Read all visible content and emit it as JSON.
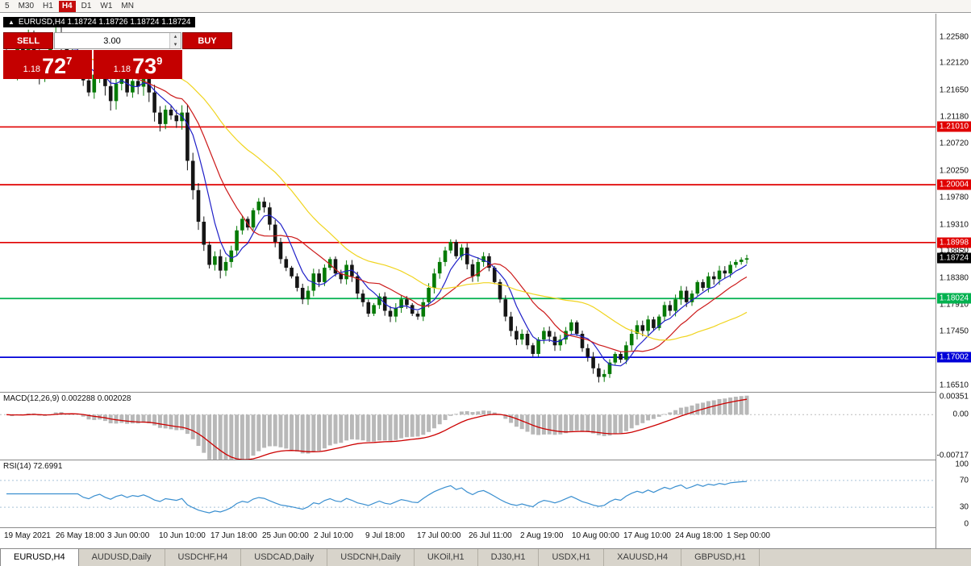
{
  "toolbar": {
    "timeframes": [
      {
        "label": "5",
        "active": false
      },
      {
        "label": "M30",
        "active": false
      },
      {
        "label": "H1",
        "active": false
      },
      {
        "label": "H4",
        "active": true
      },
      {
        "label": "D1",
        "active": false
      },
      {
        "label": "W1",
        "active": false
      },
      {
        "label": "MN",
        "active": false
      }
    ]
  },
  "chart_header": {
    "text": "EURUSD,H4 1.18724 1.18726 1.18724 1.18724"
  },
  "trade_panel": {
    "sell_label": "SELL",
    "buy_label": "BUY",
    "volume": "3.00",
    "sell_price": {
      "small": "1.18",
      "big": "72",
      "sup": "7"
    },
    "buy_price": {
      "small": "1.18",
      "big": "73",
      "sup": "9"
    }
  },
  "price_axis": {
    "labels": [
      "1.22580",
      "1.22120",
      "1.21650",
      "1.21180",
      "1.20720",
      "1.20250",
      "1.19780",
      "1.19310",
      "1.18850",
      "1.18380",
      "1.17910",
      "1.17450",
      "1.16980",
      "1.16510"
    ],
    "current": "1.18724",
    "current_bg": "#000000"
  },
  "indicators": {
    "macd": {
      "label": "MACD(12,26,9) 0.002288 0.002028",
      "axis": [
        "0.00351",
        "0.00",
        "-0.00717"
      ],
      "range": [
        0.00351,
        -0.00717
      ],
      "histogram_color": "#b8b8b8",
      "signal_color": "#cc0000"
    },
    "rsi": {
      "label": "RSI(14) 72.6991",
      "axis": [
        "100",
        "70",
        "30",
        "0"
      ],
      "guides": [
        70,
        30
      ],
      "line_color": "#3a8fd0"
    }
  },
  "time_axis": [
    "19 May 2021",
    "26 May 18:00",
    "3 Jun 00:00",
    "10 Jun 10:00",
    "17 Jun 18:00",
    "25 Jun 00:00",
    "2 Jul 10:00",
    "9 Jul 18:00",
    "17 Jul 00:00",
    "26 Jul 11:00",
    "2 Aug 19:00",
    "10 Aug 00:00",
    "17 Aug 10:00",
    "24 Aug 18:00",
    "1 Sep 00:00"
  ],
  "tabs": [
    {
      "label": "EURUSD,H4",
      "active": true
    },
    {
      "label": "AUDUSD,Daily",
      "active": false
    },
    {
      "label": "USDCHF,H4",
      "active": false
    },
    {
      "label": "USDCAD,Daily",
      "active": false
    },
    {
      "label": "USDCNH,Daily",
      "active": false
    },
    {
      "label": "UKOil,H1",
      "active": false
    },
    {
      "label": "DJ30,H1",
      "active": false
    },
    {
      "label": "USDX,H1",
      "active": false
    },
    {
      "label": "XAUUSD,H4",
      "active": false
    },
    {
      "label": "GBPUSD,H1",
      "active": false
    }
  ],
  "chart_data": {
    "type": "candlestick",
    "symbol": "EURUSD",
    "timeframe": "H4",
    "title": "EURUSD,H4",
    "ylim": [
      1.164,
      1.2298
    ],
    "current_price": 1.18724,
    "up_color": "#067a06",
    "down_color": "#151515",
    "closes": [
      1.2225,
      1.2196,
      1.2242,
      1.2218,
      1.2256,
      1.2231,
      1.2187,
      1.2214,
      1.2252,
      1.2264,
      1.2241,
      1.2203,
      1.2232,
      1.2216,
      1.2182,
      1.2161,
      1.2192,
      1.2211,
      1.2172,
      1.2146,
      1.2176,
      1.2192,
      1.2161,
      1.2181,
      1.2171,
      1.2186,
      1.2161,
      1.2126,
      1.2106,
      1.2131,
      1.2121,
      1.2111,
      1.2126,
      1.2042,
      1.1991,
      1.1936,
      1.1896,
      1.1861,
      1.1876,
      1.1851,
      1.1866,
      1.1886,
      1.1921,
      1.1941,
      1.1926,
      1.1956,
      1.1971,
      1.1961,
      1.1931,
      1.1901,
      1.1871,
      1.1856,
      1.1841,
      1.1821,
      1.1801,
      1.1816,
      1.1846,
      1.1831,
      1.1856,
      1.1871,
      1.1846,
      1.1836,
      1.1861,
      1.1841,
      1.1811,
      1.1796,
      1.1776,
      1.1791,
      1.1806,
      1.1781,
      1.1771,
      1.1786,
      1.1801,
      1.1791,
      1.1776,
      1.1771,
      1.1796,
      1.1821,
      1.1846,
      1.1866,
      1.1886,
      1.1901,
      1.1876,
      1.1891,
      1.1862,
      1.1841,
      1.1866,
      1.1876,
      1.1856,
      1.1831,
      1.1801,
      1.1771,
      1.1746,
      1.1731,
      1.1741,
      1.1721,
      1.1706,
      1.1731,
      1.1746,
      1.1736,
      1.1721,
      1.1731,
      1.1746,
      1.1761,
      1.1741,
      1.1716,
      1.1701,
      1.1681,
      1.1666,
      1.1671,
      1.1691,
      1.1706,
      1.1696,
      1.1721,
      1.1741,
      1.1756,
      1.1746,
      1.1766,
      1.1751,
      1.1771,
      1.1791,
      1.1781,
      1.1801,
      1.1816,
      1.1796,
      1.1811,
      1.1831,
      1.1821,
      1.1841,
      1.1836,
      1.1851,
      1.1846,
      1.1861,
      1.1866,
      1.187,
      1.18724
    ],
    "levels": [
      {
        "price": 1.2101,
        "label": "1.21010",
        "color": "#e00000"
      },
      {
        "price": 1.20004,
        "label": "1.20004",
        "color": "#e00000"
      },
      {
        "price": 1.18998,
        "label": "1.18998",
        "color": "#e00000"
      },
      {
        "price": 1.18024,
        "label": "1.18024",
        "color": "#00b14f"
      },
      {
        "price": 1.17002,
        "label": "1.17002",
        "color": "#0000d8"
      }
    ],
    "ma_overlays": [
      {
        "name": "ma-fast",
        "period": 6,
        "color": "#2020c8"
      },
      {
        "name": "ma-mid",
        "period": 13,
        "color": "#cc1a1a"
      },
      {
        "name": "ma-slow",
        "period": 30,
        "color": "#f0d41e"
      }
    ]
  }
}
